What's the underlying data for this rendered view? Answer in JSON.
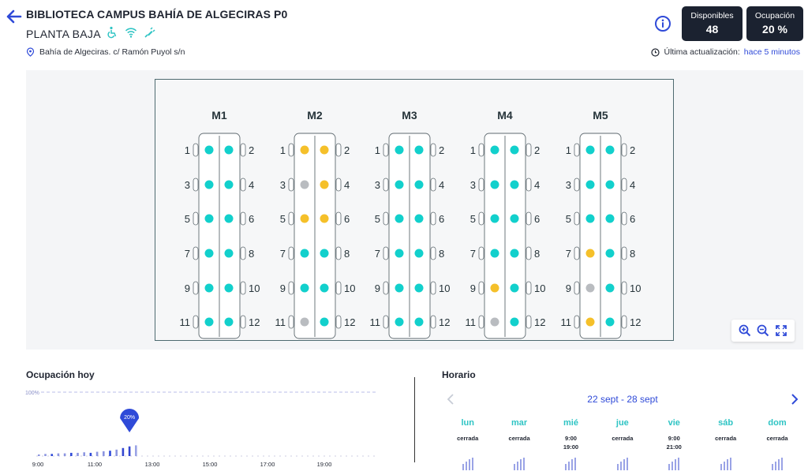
{
  "header": {
    "title": "BIBLIOTECA CAMPUS BAHÍA DE ALGECIRAS P0",
    "subtitle": "PLANTA BAJA",
    "address": "Bahía de Algeciras. c/ Ramón Puyol s/n",
    "amenities": [
      "wheelchair-icon",
      "wifi-icon",
      "plug-icon"
    ],
    "stats": {
      "available_label": "Disponibles",
      "available_value": "48",
      "occupancy_label": "Ocupación",
      "occupancy_value": "20 %"
    },
    "updated_label": "Última actualización:",
    "updated_link": "hace 5 minutos"
  },
  "colors": {
    "free": "#12d0cc",
    "occupied": "#f5c02a",
    "unavailable": "#b9bcc0",
    "accent": "#2f4ad8",
    "dark": "#1b2230",
    "teal_text": "#2ec4c4"
  },
  "floor_plan": {
    "tables": [
      {
        "name": "M1",
        "seats": [
          "free",
          "free",
          "free",
          "free",
          "free",
          "free",
          "free",
          "free",
          "free",
          "free",
          "free",
          "free"
        ]
      },
      {
        "name": "M2",
        "seats": [
          "occupied",
          "occupied",
          "unavailable",
          "occupied",
          "occupied",
          "occupied",
          "free",
          "free",
          "free",
          "free",
          "unavailable",
          "free"
        ]
      },
      {
        "name": "M3",
        "seats": [
          "free",
          "free",
          "free",
          "free",
          "free",
          "free",
          "free",
          "free",
          "free",
          "free",
          "free",
          "free"
        ]
      },
      {
        "name": "M4",
        "seats": [
          "free",
          "free",
          "free",
          "free",
          "free",
          "free",
          "free",
          "free",
          "occupied",
          "free",
          "unavailable",
          "free"
        ]
      },
      {
        "name": "M5",
        "seats": [
          "free",
          "free",
          "free",
          "free",
          "free",
          "free",
          "occupied",
          "free",
          "unavailable",
          "free",
          "occupied",
          "free"
        ]
      }
    ],
    "seat_numbers": [
      "1",
      "2",
      "3",
      "4",
      "5",
      "6",
      "7",
      "8",
      "9",
      "10",
      "11",
      "12"
    ]
  },
  "occupancy_today": {
    "title": "Ocupación hoy",
    "max_label": "100%",
    "current_label": "20%",
    "time_labels": [
      "9:00",
      "11:00",
      "13:00",
      "15:00",
      "17:00",
      "19:00"
    ]
  },
  "chart_data": {
    "type": "bar",
    "title": "Ocupación hoy",
    "ylim": [
      0,
      100
    ],
    "x_ticks": [
      "9:00",
      "11:00",
      "13:00",
      "15:00",
      "17:00",
      "19:00"
    ],
    "series": [
      {
        "name": "",
        "values": [
          3,
          4,
          4,
          5,
          5,
          6,
          6,
          7,
          6,
          8,
          9,
          10,
          12,
          15,
          18,
          20
        ]
      }
    ]
  },
  "schedule": {
    "title": "Horario",
    "week_range": "22 sept - 28 sept",
    "days": [
      {
        "name": "lun",
        "hours": "cerrada"
      },
      {
        "name": "mar",
        "hours": "cerrada"
      },
      {
        "name": "mié",
        "hours": "9:00\n19:00"
      },
      {
        "name": "jue",
        "hours": "cerrada"
      },
      {
        "name": "vie",
        "hours": "9:00\n21:00"
      },
      {
        "name": "sáb",
        "hours": "cerrada"
      },
      {
        "name": "dom",
        "hours": "cerrada"
      }
    ]
  }
}
